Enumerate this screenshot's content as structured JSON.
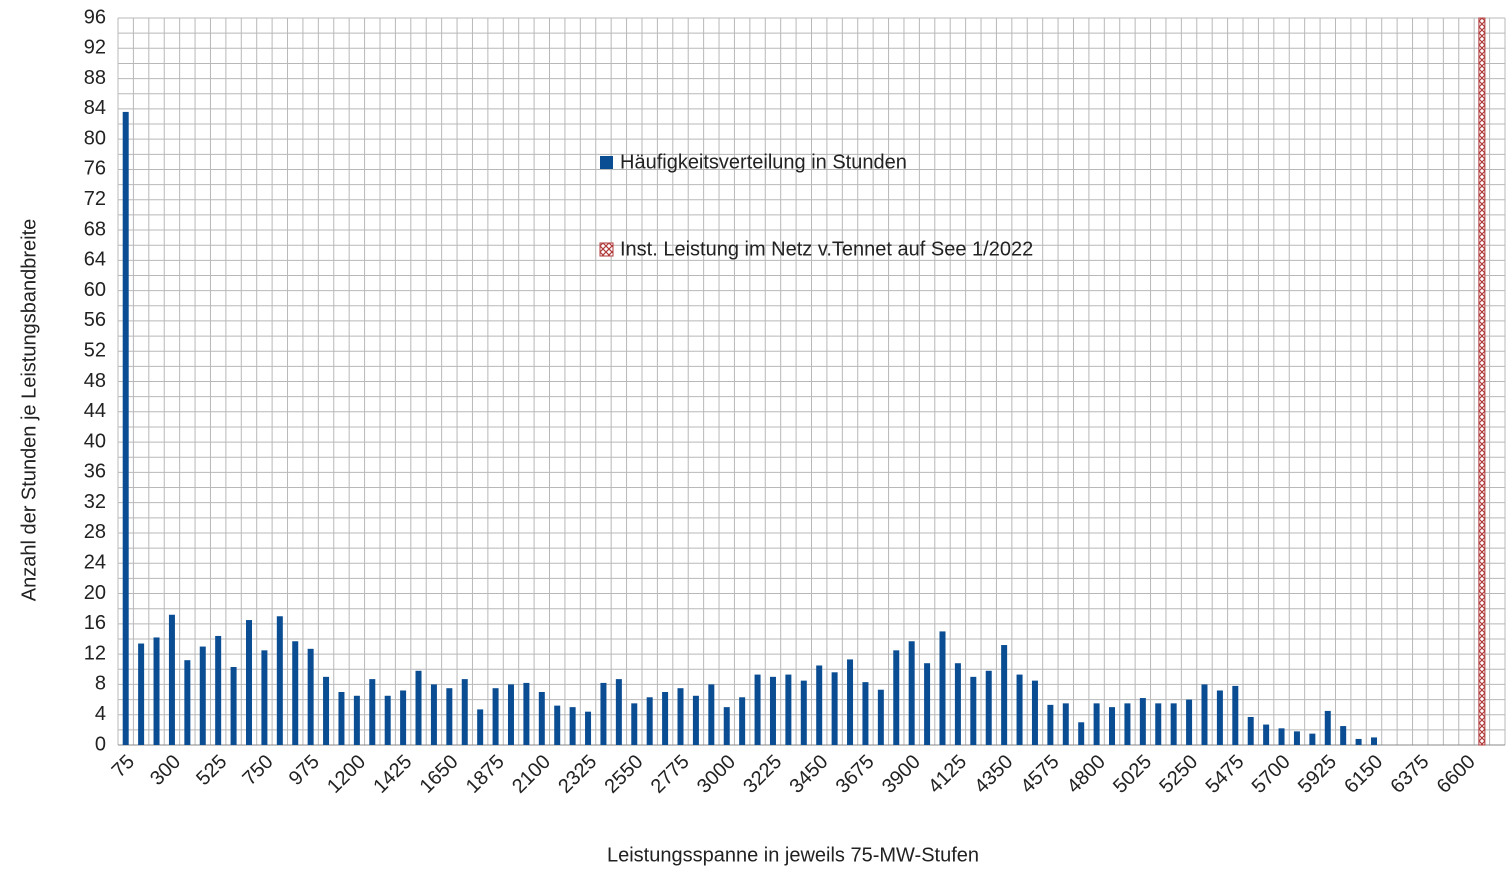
{
  "chart_data": {
    "type": "bar",
    "x_label": "Leistungsspanne in jeweils 75-MW-Stufen",
    "y_label": "Anzahl der Stunden je Leistungsbandbreite",
    "categories": [
      "75",
      null,
      null,
      "300",
      null,
      null,
      "525",
      null,
      null,
      "750",
      null,
      null,
      "975",
      null,
      null,
      "1200",
      null,
      null,
      "1425",
      null,
      null,
      "1650",
      null,
      null,
      "1875",
      null,
      null,
      "2100",
      null,
      null,
      "2325",
      null,
      null,
      "2550",
      null,
      null,
      "2775",
      null,
      null,
      "3000",
      null,
      null,
      "3225",
      null,
      null,
      "3450",
      null,
      null,
      "3675",
      null,
      null,
      "3900",
      null,
      null,
      "4125",
      null,
      null,
      "4350",
      null,
      null,
      "4575",
      null,
      null,
      "4800",
      null,
      null,
      "5025",
      null,
      null,
      "5250",
      null,
      null,
      "5475",
      null,
      null,
      "5700",
      null,
      null,
      "5925",
      null,
      null,
      "6150",
      null,
      null,
      "6375",
      null,
      null,
      "6600",
      null,
      null
    ],
    "series": [
      {
        "name": "Häufigkeitsverteilung in Stunden",
        "color": "#0b4d92",
        "values": [
          83.6,
          13.4,
          14.2,
          17.2,
          11.2,
          13,
          14.4,
          10.3,
          16.5,
          12.5,
          17,
          13.7,
          12.7,
          9,
          7,
          6.5,
          8.7,
          6.5,
          7.2,
          9.8,
          8,
          7.5,
          8.7,
          4.7,
          7.5,
          8,
          8.2,
          7,
          5.2,
          5,
          4.4,
          8.2,
          8.7,
          5.5,
          6.3,
          7,
          7.5,
          6.5,
          8,
          5,
          6.3,
          9.3,
          9,
          9.3,
          8.5,
          10.5,
          9.6,
          11.3,
          8.3,
          7.3,
          12.5,
          13.7,
          10.8,
          15,
          10.8,
          9,
          9.8,
          13.2,
          9.3,
          8.5,
          5.3,
          5.5,
          3,
          5.5,
          5,
          5.5,
          6.2,
          5.5,
          5.5,
          6,
          8,
          7.2,
          7.8,
          3.7,
          2.7,
          2.2,
          1.8,
          1.5,
          4.5,
          2.5,
          0.8,
          1,
          0,
          0,
          0,
          0,
          0,
          0,
          0,
          0
        ]
      },
      {
        "name": "Inst. Leistung im Netz v.Tennet auf See 1/2022",
        "color": "#b03a3a",
        "hatch": true,
        "values": [
          null,
          null,
          null,
          null,
          null,
          null,
          null,
          null,
          null,
          null,
          null,
          null,
          null,
          null,
          null,
          null,
          null,
          null,
          null,
          null,
          null,
          null,
          null,
          null,
          null,
          null,
          null,
          null,
          null,
          null,
          null,
          null,
          null,
          null,
          null,
          null,
          null,
          null,
          null,
          null,
          null,
          null,
          null,
          null,
          null,
          null,
          null,
          null,
          null,
          null,
          null,
          null,
          null,
          null,
          null,
          null,
          null,
          null,
          null,
          null,
          null,
          null,
          null,
          null,
          null,
          null,
          null,
          null,
          null,
          null,
          null,
          null,
          null,
          null,
          null,
          null,
          null,
          null,
          null,
          null,
          null,
          null,
          null,
          null,
          null,
          null,
          null,
          null,
          96,
          null
        ]
      }
    ],
    "ylim": [
      0,
      96
    ],
    "yticks": [
      0,
      4,
      8,
      12,
      16,
      20,
      24,
      28,
      32,
      36,
      40,
      44,
      48,
      52,
      56,
      60,
      64,
      68,
      72,
      76,
      80,
      84,
      88,
      92,
      96
    ],
    "grid": true
  }
}
